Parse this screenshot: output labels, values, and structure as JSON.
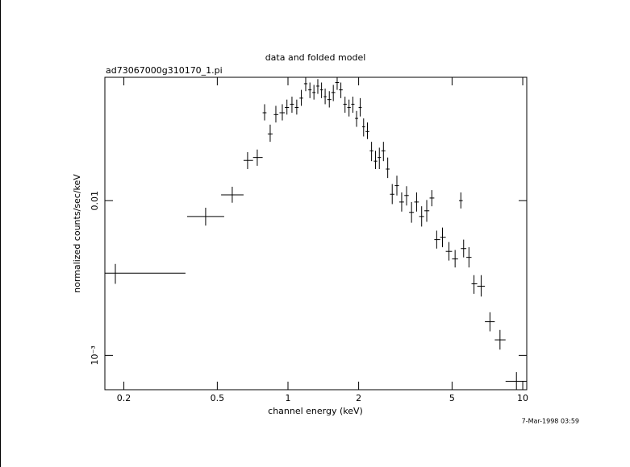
{
  "chart_data": {
    "type": "scatter",
    "title": "data and folded model",
    "subtitle": "ad73067000g310170_1.pi",
    "xlabel": "channel energy (keV)",
    "ylabel": "normalized counts/sec/keV",
    "annotation": "7-Mar-1998 03:59",
    "log_x": true,
    "log_y": true,
    "color": "#000000",
    "xlim": [
      0.166,
      10.4
    ],
    "ylim": [
      0.0006,
      0.0627
    ],
    "xticks": [
      0.2,
      0.5,
      1,
      2,
      5,
      10
    ],
    "yticks": [
      {
        "value": 0.001,
        "label": "10⁻³"
      },
      0.01
    ],
    "x": [
      0.184,
      0.446,
      0.579,
      0.673,
      0.74,
      0.795,
      0.84,
      0.888,
      0.946,
      0.99,
      1.04,
      1.09,
      1.14,
      1.19,
      1.24,
      1.29,
      1.34,
      1.39,
      1.44,
      1.5,
      1.56,
      1.62,
      1.68,
      1.75,
      1.82,
      1.89,
      1.96,
      2.03,
      2.1,
      2.18,
      2.27,
      2.36,
      2.45,
      2.55,
      2.66,
      2.78,
      2.91,
      3.05,
      3.2,
      3.36,
      3.53,
      3.71,
      3.9,
      4.1,
      4.3,
      4.55,
      4.85,
      5.15,
      5.45,
      5.6,
      5.9,
      6.2,
      6.65,
      7.25,
      8.0,
      9.4
    ],
    "x_low": [
      0.166,
      0.372,
      0.519,
      0.647,
      0.71,
      0.78,
      0.82,
      0.87,
      0.92,
      0.97,
      1.02,
      1.07,
      1.12,
      1.17,
      1.22,
      1.27,
      1.32,
      1.37,
      1.42,
      1.47,
      1.53,
      1.59,
      1.65,
      1.72,
      1.79,
      1.86,
      1.93,
      2.0,
      2.07,
      2.14,
      2.23,
      2.32,
      2.41,
      2.5,
      2.61,
      2.72,
      2.85,
      2.98,
      3.13,
      3.28,
      3.45,
      3.62,
      3.81,
      4.01,
      4.2,
      4.45,
      4.7,
      5.0,
      5.35,
      5.45,
      5.75,
      6.05,
      6.4,
      6.9,
      7.6,
      8.45
    ],
    "x_high": [
      0.366,
      0.535,
      0.647,
      0.71,
      0.78,
      0.81,
      0.86,
      0.91,
      0.97,
      1.01,
      1.06,
      1.11,
      1.16,
      1.21,
      1.26,
      1.31,
      1.36,
      1.41,
      1.46,
      1.53,
      1.59,
      1.65,
      1.71,
      1.78,
      1.85,
      1.92,
      1.99,
      2.06,
      2.13,
      2.22,
      2.31,
      2.4,
      2.49,
      2.6,
      2.71,
      2.84,
      2.97,
      3.12,
      3.27,
      3.44,
      3.61,
      3.8,
      4.0,
      4.2,
      4.45,
      4.7,
      5.0,
      5.3,
      5.55,
      5.75,
      6.05,
      6.4,
      6.9,
      7.6,
      8.45,
      10.4
    ],
    "values": [
      0.0034,
      0.0079,
      0.0109,
      0.0182,
      0.019,
      0.037,
      0.027,
      0.036,
      0.037,
      0.04,
      0.042,
      0.04,
      0.046,
      0.057,
      0.052,
      0.05,
      0.055,
      0.052,
      0.047,
      0.045,
      0.05,
      0.058,
      0.052,
      0.042,
      0.04,
      0.042,
      0.034,
      0.04,
      0.03,
      0.028,
      0.021,
      0.018,
      0.019,
      0.021,
      0.016,
      0.011,
      0.0125,
      0.0098,
      0.0108,
      0.0084,
      0.0098,
      0.0079,
      0.0086,
      0.0104,
      0.0056,
      0.0058,
      0.0047,
      0.0042,
      0.01,
      0.0049,
      0.0043,
      0.0029,
      0.0028,
      0.00165,
      0.00126,
      0.00068
    ],
    "y_low": [
      0.0029,
      0.0069,
      0.0097,
      0.016,
      0.0168,
      0.033,
      0.024,
      0.032,
      0.033,
      0.036,
      0.037,
      0.036,
      0.041,
      0.051,
      0.046,
      0.045,
      0.049,
      0.046,
      0.042,
      0.04,
      0.044,
      0.052,
      0.046,
      0.037,
      0.035,
      0.037,
      0.03,
      0.035,
      0.026,
      0.025,
      0.018,
      0.016,
      0.016,
      0.018,
      0.014,
      0.0095,
      0.0108,
      0.0085,
      0.0093,
      0.0072,
      0.0085,
      0.0068,
      0.0073,
      0.0092,
      0.0049,
      0.005,
      0.0041,
      0.0037,
      0.0089,
      0.0043,
      0.0037,
      0.0025,
      0.0024,
      0.00143,
      0.00109,
      0.0006
    ],
    "y_high": [
      0.0039,
      0.009,
      0.0123,
      0.0206,
      0.0214,
      0.042,
      0.031,
      0.041,
      0.042,
      0.045,
      0.047,
      0.045,
      0.052,
      0.063,
      0.058,
      0.056,
      0.061,
      0.058,
      0.053,
      0.051,
      0.056,
      0.063,
      0.058,
      0.047,
      0.045,
      0.047,
      0.038,
      0.046,
      0.034,
      0.032,
      0.024,
      0.021,
      0.022,
      0.024,
      0.019,
      0.0128,
      0.0145,
      0.0113,
      0.0124,
      0.0098,
      0.0113,
      0.0092,
      0.0101,
      0.0117,
      0.0064,
      0.0067,
      0.0054,
      0.0048,
      0.0113,
      0.0056,
      0.005,
      0.0033,
      0.0033,
      0.0019,
      0.00146,
      0.00078
    ]
  }
}
